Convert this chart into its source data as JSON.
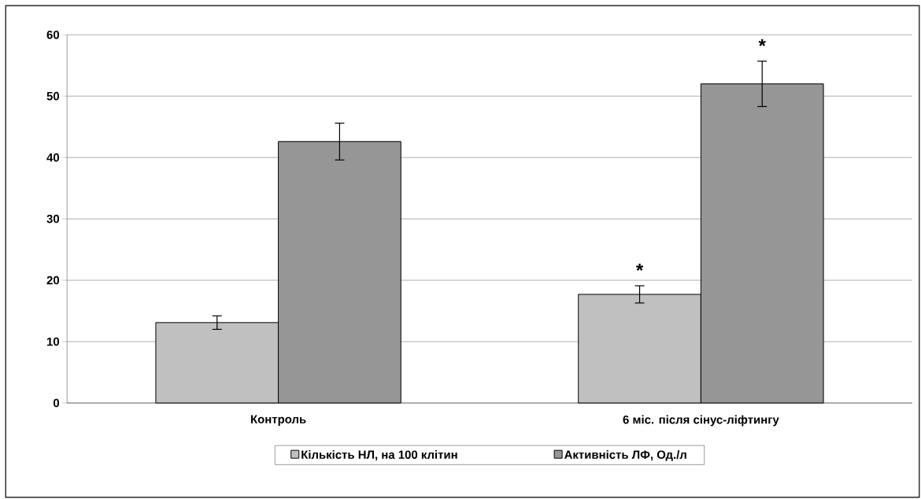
{
  "chart_data": {
    "type": "bar",
    "categories": [
      "Контроль",
      "6 міс. після сінус-ліфтингу"
    ],
    "series": [
      {
        "name": "Кількість НЛ, на 100 клітин",
        "color": "#c0c0c0",
        "values": [
          13.1,
          17.7
        ],
        "errors": [
          1.1,
          1.4
        ]
      },
      {
        "name": "Активність ЛФ, Од./л",
        "color": "#969696",
        "values": [
          42.6,
          52.0
        ],
        "errors": [
          3.0,
          3.7
        ]
      }
    ],
    "ylim": [
      0,
      60
    ],
    "yticks": [
      0,
      10,
      20,
      30,
      40,
      50,
      60
    ],
    "grid": "y",
    "legend": "bottom",
    "annotations": [
      "*",
      "*"
    ]
  }
}
